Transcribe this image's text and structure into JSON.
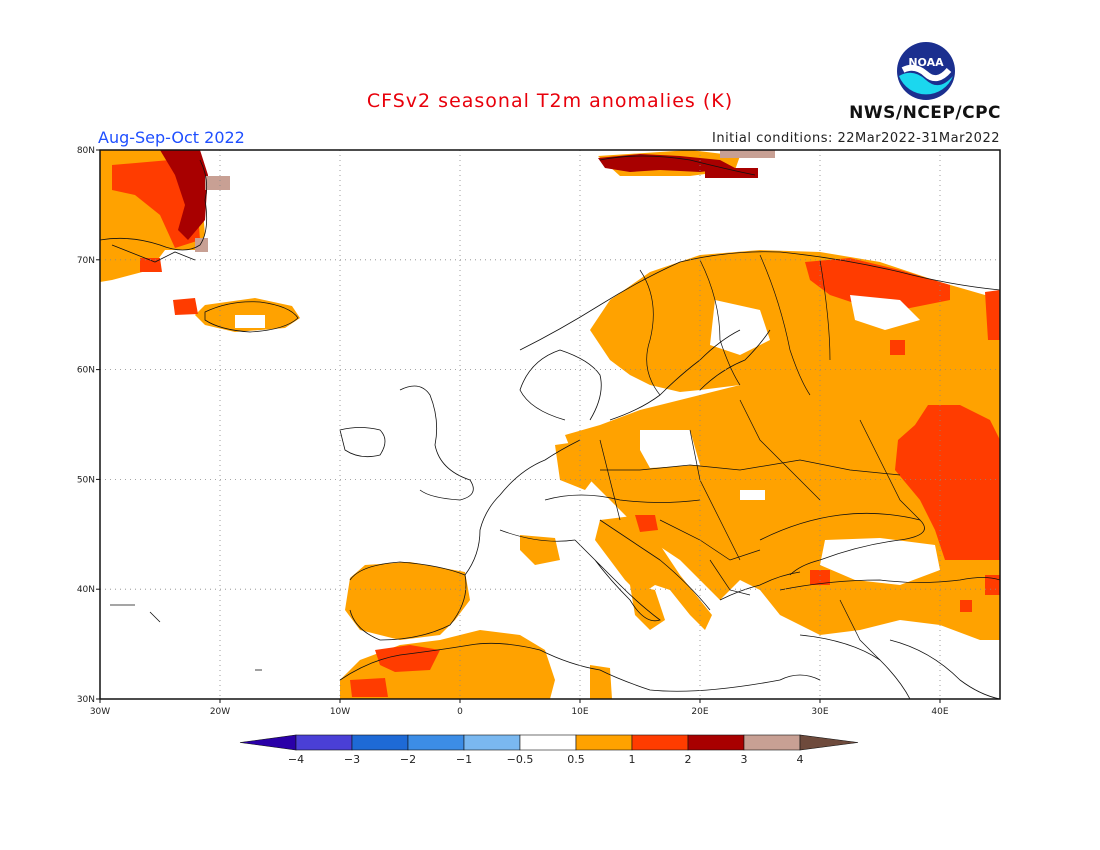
{
  "title": "CFSv2 seasonal T2m anomalies (K)",
  "season": "Aug-Sep-Oct 2022",
  "initial_conditions": "Initial conditions: 22Mar2022-31Mar2022",
  "org": "NWS/NCEP/CPC",
  "logo_text": "NOAA",
  "map": {
    "lon_range": [
      -30,
      45
    ],
    "lat_range": [
      30,
      80
    ],
    "lon_ticks": [
      "30W",
      "20W",
      "10W",
      "0",
      "10E",
      "20E",
      "30E",
      "40E"
    ],
    "lat_ticks": [
      "30N",
      "40N",
      "50N",
      "60N",
      "70N",
      "80N"
    ]
  },
  "legend": {
    "labels": [
      "-4",
      "-3",
      "-2",
      "-1",
      "-0.5",
      "0.5",
      "1",
      "2",
      "3",
      "4"
    ],
    "colors": [
      "#2a00a8",
      "#4a3fd6",
      "#1e6ad6",
      "#3c8de6",
      "#7ab8f0",
      "#ffffff",
      "#ffa200",
      "#ff3c00",
      "#a80000",
      "#c8a094",
      "#6e4a3c"
    ]
  },
  "colors": {
    "orange": "#ffa200",
    "red": "#ff3c00",
    "darkred": "#a80000",
    "tan": "#c8a094"
  }
}
